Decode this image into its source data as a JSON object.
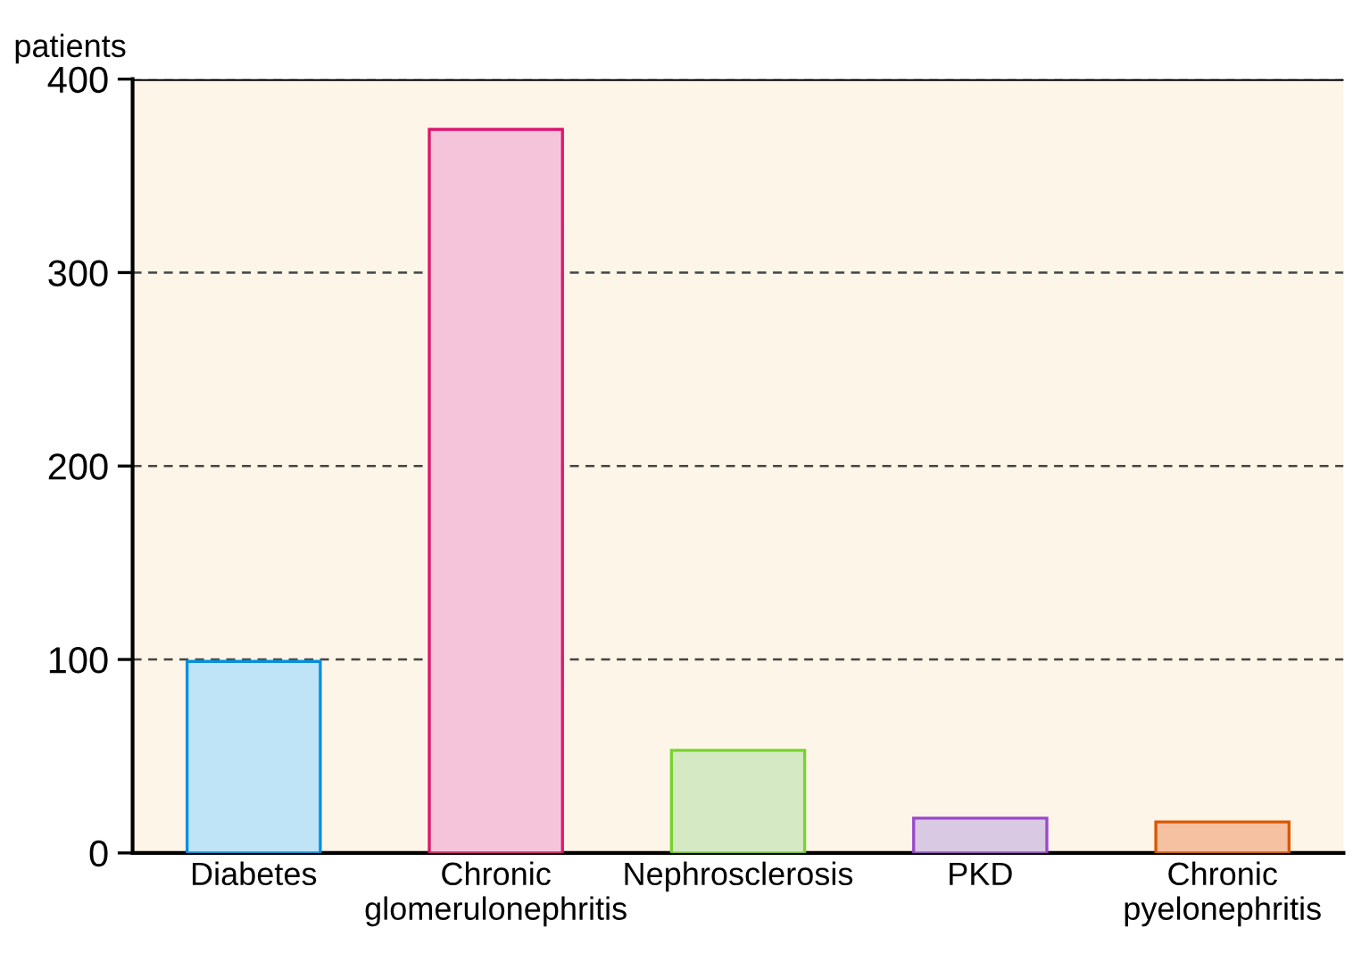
{
  "chart_data": {
    "type": "bar",
    "ylabel": "patients",
    "categories": [
      "Diabetes",
      "Chronic\nglomerulonephritis",
      "Nephrosclerosis",
      "PKD",
      "Chronic\npyelonephritis"
    ],
    "values": [
      99,
      374,
      53,
      18,
      16
    ],
    "colors": [
      "#bfe3f7",
      "#f5c4da",
      "#d5eac4",
      "#d9c9e3",
      "#f5c1a0"
    ],
    "ylim": [
      0,
      400
    ],
    "yticks": [
      0,
      100,
      200,
      300,
      400
    ],
    "grid": "y"
  }
}
